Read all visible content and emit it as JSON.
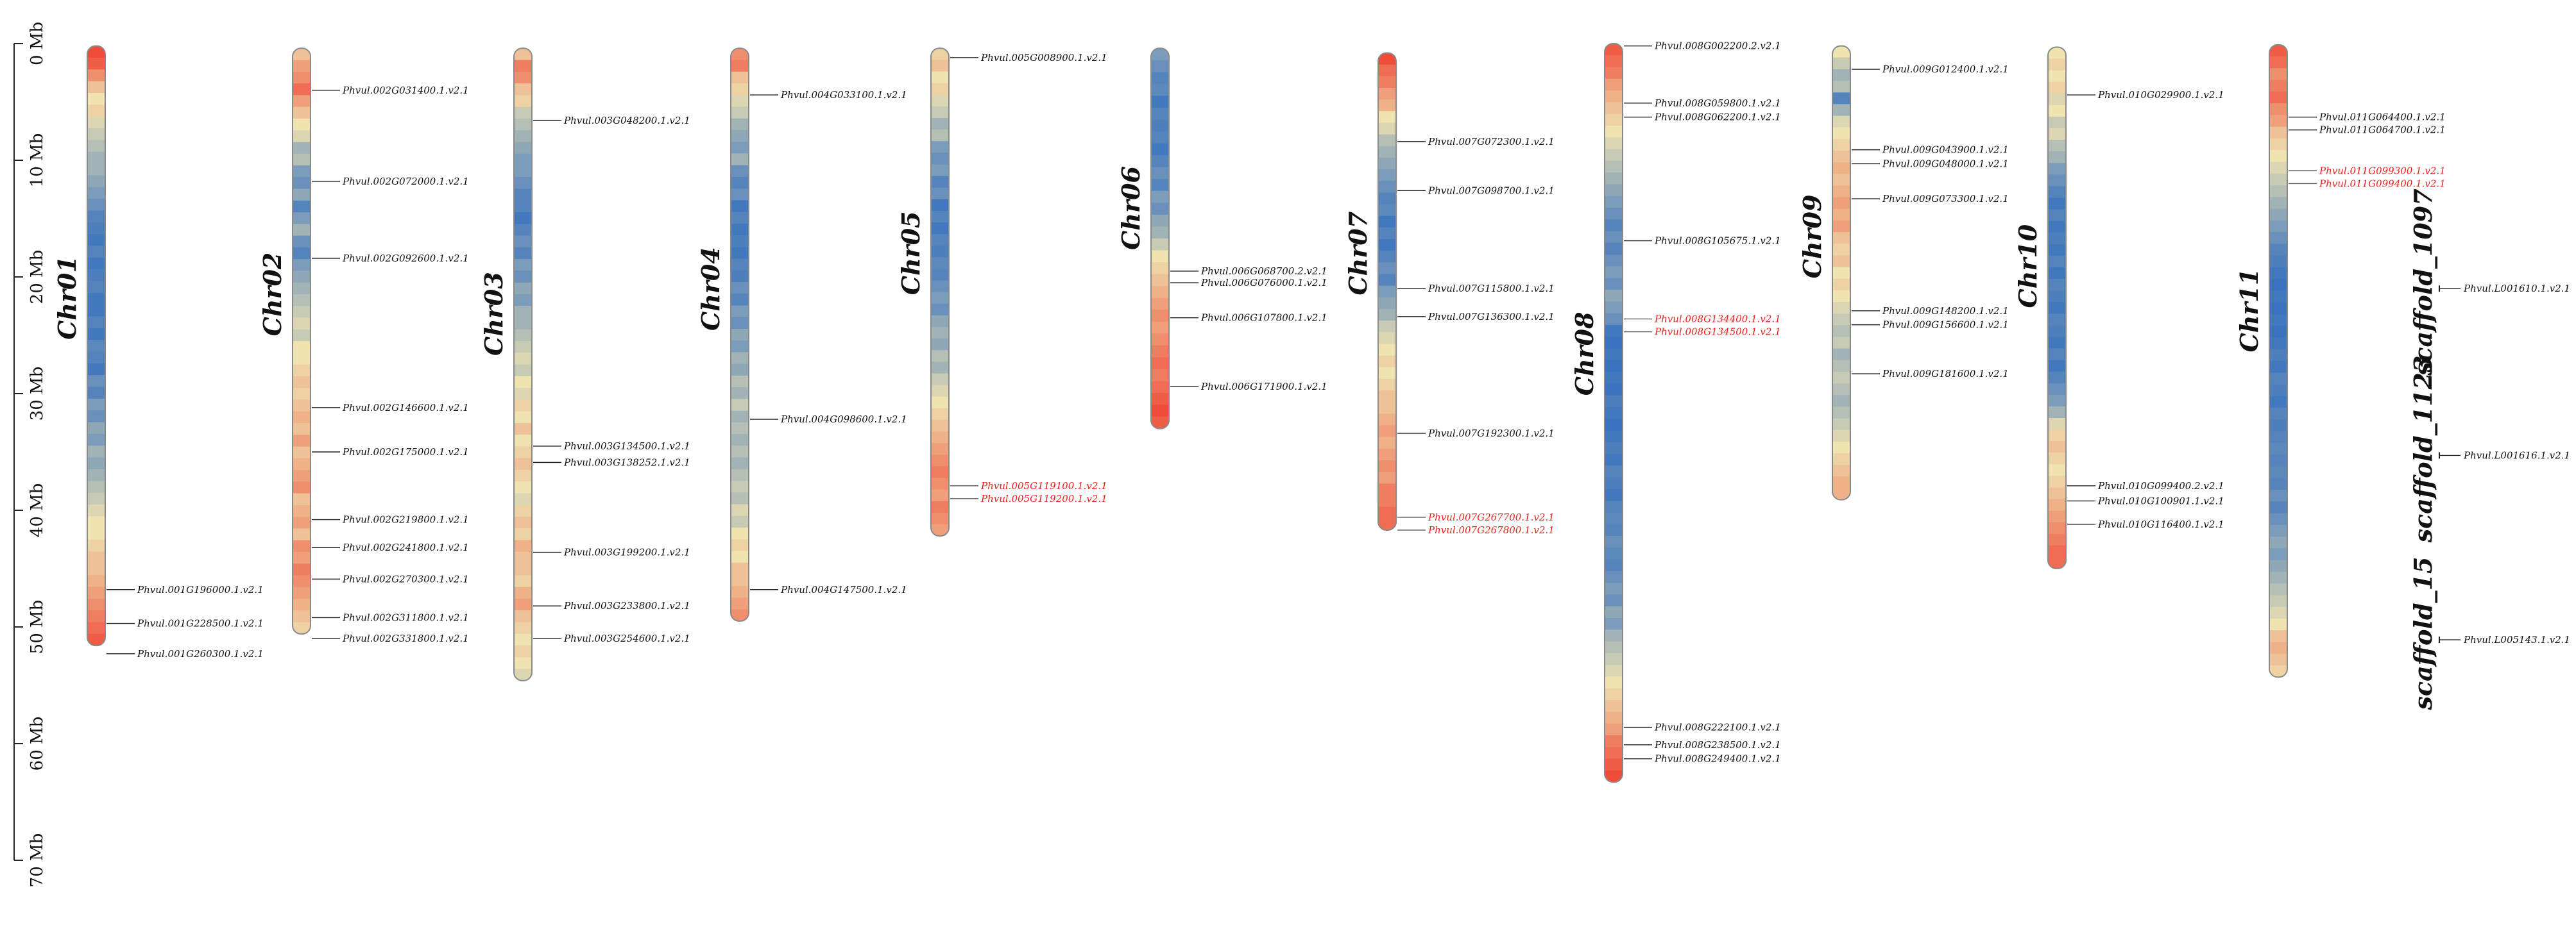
{
  "axis": {
    "unit": "Mb",
    "ticks": [
      {
        "value": 0,
        "label": "0 Mb"
      },
      {
        "value": 10,
        "label": "10 Mb"
      },
      {
        "value": 20,
        "label": "20 Mb"
      },
      {
        "value": 30,
        "label": "30 Mb"
      },
      {
        "value": 40,
        "label": "40 Mb"
      },
      {
        "value": 50,
        "label": "50 Mb"
      },
      {
        "value": 60,
        "label": "60 Mb"
      },
      {
        "value": 70,
        "label": "70 Mb"
      }
    ]
  },
  "colors": {
    "low_density": "#2e6cc0",
    "mid_density": "#efe3b0",
    "high_density": "#ef3b2c",
    "highlight_text": "#e8221c",
    "text": "#111111"
  },
  "chromosomes": [
    {
      "name": "Chr01",
      "start": 0.2,
      "length": 51.4,
      "density": [
        0.95,
        0.9,
        0.75,
        0.6,
        0.5,
        0.55,
        0.45,
        0.4,
        0.35,
        0.3,
        0.3,
        0.25,
        0.2,
        0.15,
        0.1,
        0.08,
        0.05,
        0.1,
        0.05,
        0.08,
        0.1,
        0.05,
        0.05,
        0.1,
        0.05,
        0.12,
        0.1,
        0.05,
        0.15,
        0.1,
        0.2,
        0.15,
        0.25,
        0.2,
        0.3,
        0.25,
        0.3,
        0.35,
        0.4,
        0.45,
        0.5,
        0.5,
        0.55,
        0.6,
        0.6,
        0.65,
        0.7,
        0.75,
        0.8,
        0.85,
        0.9
      ],
      "genes": [
        {
          "label": "Phvul.001G196000.1.v2.1",
          "pos": 46.8
        },
        {
          "label": "Phvul.001G228500.1.v2.1",
          "pos": 49.7
        },
        {
          "label": "Phvul.001G260300.1.v2.1",
          "pos": 52.3
        }
      ]
    },
    {
      "name": "Chr02",
      "start": 0.4,
      "length": 50.2,
      "density": [
        0.6,
        0.7,
        0.75,
        0.85,
        0.7,
        0.6,
        0.5,
        0.45,
        0.3,
        0.35,
        0.2,
        0.15,
        0.25,
        0.1,
        0.2,
        0.3,
        0.15,
        0.1,
        0.2,
        0.25,
        0.3,
        0.35,
        0.4,
        0.45,
        0.4,
        0.5,
        0.5,
        0.55,
        0.6,
        0.55,
        0.6,
        0.65,
        0.6,
        0.7,
        0.6,
        0.65,
        0.7,
        0.75,
        0.6,
        0.65,
        0.7,
        0.6,
        0.75,
        0.7,
        0.8,
        0.75,
        0.7,
        0.65,
        0.6,
        0.55
      ],
      "genes": [
        {
          "label": "Phvul.002G031400.1.v2.1",
          "pos": 4.0
        },
        {
          "label": "Phvul.002G072000.1.v2.1",
          "pos": 11.8
        },
        {
          "label": "Phvul.002G092600.1.v2.1",
          "pos": 18.4
        },
        {
          "label": "Phvul.002G146600.1.v2.1",
          "pos": 31.2
        },
        {
          "label": "Phvul.002G175000.1.v2.1",
          "pos": 35.0
        },
        {
          "label": "Phvul.002G219800.1.v2.1",
          "pos": 40.8
        },
        {
          "label": "Phvul.002G241800.1.v2.1",
          "pos": 43.2
        },
        {
          "label": "Phvul.002G270300.1.v2.1",
          "pos": 45.9
        },
        {
          "label": "Phvul.002G311800.1.v2.1",
          "pos": 49.2
        },
        {
          "label": "Phvul.002G331800.1.v2.1",
          "pos": 51.0
        }
      ]
    },
    {
      "name": "Chr03",
      "start": 0.4,
      "length": 54.2,
      "density": [
        0.6,
        0.8,
        0.75,
        0.6,
        0.55,
        0.4,
        0.35,
        0.3,
        0.25,
        0.2,
        0.2,
        0.15,
        0.1,
        0.1,
        0.05,
        0.1,
        0.15,
        0.1,
        0.2,
        0.15,
        0.25,
        0.2,
        0.3,
        0.3,
        0.35,
        0.4,
        0.45,
        0.4,
        0.5,
        0.45,
        0.55,
        0.5,
        0.6,
        0.5,
        0.55,
        0.6,
        0.55,
        0.5,
        0.45,
        0.55,
        0.6,
        0.55,
        0.65,
        0.6,
        0.6,
        0.55,
        0.65,
        0.7,
        0.6,
        0.55,
        0.5,
        0.55,
        0.5,
        0.45
      ],
      "genes": [
        {
          "label": "Phvul.003G048200.1.v2.1",
          "pos": 6.6
        },
        {
          "label": "Phvul.003G134500.1.v2.1",
          "pos": 34.5
        },
        {
          "label": "Phvul.003G138252.1.v2.1",
          "pos": 35.9
        },
        {
          "label": "Phvul.003G199200.1.v2.1",
          "pos": 43.6
        },
        {
          "label": "Phvul.003G233800.1.v2.1",
          "pos": 48.2
        },
        {
          "label": "Phvul.003G254600.1.v2.1",
          "pos": 51.0
        }
      ]
    },
    {
      "name": "Chr04",
      "start": 0.4,
      "length": 49.1,
      "density": [
        0.75,
        0.8,
        0.6,
        0.55,
        0.45,
        0.4,
        0.3,
        0.25,
        0.2,
        0.3,
        0.15,
        0.1,
        0.15,
        0.05,
        0.1,
        0.05,
        0.08,
        0.05,
        0.1,
        0.08,
        0.15,
        0.1,
        0.2,
        0.15,
        0.25,
        0.2,
        0.3,
        0.25,
        0.35,
        0.3,
        0.4,
        0.3,
        0.35,
        0.3,
        0.35,
        0.3,
        0.35,
        0.4,
        0.35,
        0.45,
        0.4,
        0.5,
        0.55,
        0.5,
        0.6,
        0.6,
        0.65,
        0.7,
        0.75
      ],
      "genes": [
        {
          "label": "Phvul.004G033100.1.v2.1",
          "pos": 4.4
        },
        {
          "label": "Phvul.004G098600.1.v2.1",
          "pos": 32.2
        },
        {
          "label": "Phvul.004G147500.1.v2.1",
          "pos": 46.8
        }
      ]
    },
    {
      "name": "Chr05",
      "start": 0.4,
      "length": 41.8,
      "density": [
        0.55,
        0.6,
        0.5,
        0.55,
        0.45,
        0.4,
        0.3,
        0.35,
        0.2,
        0.15,
        0.2,
        0.1,
        0.15,
        0.05,
        0.1,
        0.05,
        0.1,
        0.08,
        0.12,
        0.1,
        0.15,
        0.2,
        0.15,
        0.25,
        0.3,
        0.25,
        0.35,
        0.3,
        0.4,
        0.45,
        0.5,
        0.55,
        0.6,
        0.65,
        0.7,
        0.75,
        0.8,
        0.75,
        0.7,
        0.8,
        0.75,
        0.7
      ],
      "genes": [
        {
          "label": "Phvul.005G008900.1.v2.1",
          "pos": 1.2
        },
        {
          "label": "Phvul.005G119100.1.v2.1",
          "pos": 37.9,
          "highlight": true
        },
        {
          "label": "Phvul.005G119200.1.v2.1",
          "pos": 39.0,
          "highlight": true
        }
      ]
    },
    {
      "name": "Chr06",
      "start": 0.4,
      "length": 32.6,
      "density": [
        0.2,
        0.15,
        0.1,
        0.12,
        0.05,
        0.1,
        0.08,
        0.1,
        0.05,
        0.1,
        0.15,
        0.1,
        0.2,
        0.15,
        0.25,
        0.3,
        0.4,
        0.5,
        0.55,
        0.6,
        0.65,
        0.7,
        0.75,
        0.7,
        0.75,
        0.8,
        0.85,
        0.8,
        0.85,
        0.9,
        0.95,
        0.9
      ],
      "genes": [
        {
          "label": "Phvul.006G068700.2.v2.1",
          "pos": 19.5
        },
        {
          "label": "Phvul.006G076000.1.v2.1",
          "pos": 20.5
        },
        {
          "label": "Phvul.006G107800.1.v2.1",
          "pos": 23.5
        },
        {
          "label": "Phvul.006G171900.1.v2.1",
          "pos": 29.4
        }
      ]
    },
    {
      "name": "Chr07",
      "start": 0.8,
      "length": 40.9,
      "density": [
        0.95,
        0.85,
        0.8,
        0.7,
        0.65,
        0.5,
        0.45,
        0.35,
        0.3,
        0.25,
        0.2,
        0.15,
        0.1,
        0.12,
        0.05,
        0.1,
        0.05,
        0.1,
        0.15,
        0.1,
        0.2,
        0.25,
        0.3,
        0.4,
        0.45,
        0.5,
        0.55,
        0.5,
        0.55,
        0.6,
        0.6,
        0.65,
        0.7,
        0.65,
        0.7,
        0.75,
        0.7,
        0.8,
        0.8,
        0.85,
        0.85
      ],
      "genes": [
        {
          "label": "Phvul.007G072300.1.v2.1",
          "pos": 8.4
        },
        {
          "label": "Phvul.007G098700.1.v2.1",
          "pos": 12.6
        },
        {
          "label": "Phvul.007G115800.1.v2.1",
          "pos": 21.0
        },
        {
          "label": "Phvul.007G136300.1.v2.1",
          "pos": 23.4
        },
        {
          "label": "Phvul.007G192300.1.v2.1",
          "pos": 33.4
        },
        {
          "label": "Phvul.007G267700.1.v2.1",
          "pos": 40.6,
          "highlight": true
        },
        {
          "label": "Phvul.007G267800.1.v2.1",
          "pos": 41.7,
          "highlight": true
        }
      ]
    },
    {
      "name": "Chr08",
      "start": 0.0,
      "length": 63.3,
      "density": [
        0.9,
        0.85,
        0.8,
        0.7,
        0.65,
        0.6,
        0.55,
        0.5,
        0.45,
        0.4,
        0.35,
        0.3,
        0.25,
        0.2,
        0.15,
        0.1,
        0.15,
        0.1,
        0.15,
        0.2,
        0.15,
        0.25,
        0.2,
        0.15,
        0.05,
        0.03,
        0.05,
        0.03,
        0.05,
        0.03,
        0.08,
        0.05,
        0.03,
        0.05,
        0.08,
        0.05,
        0.1,
        0.08,
        0.05,
        0.1,
        0.12,
        0.1,
        0.15,
        0.12,
        0.1,
        0.15,
        0.2,
        0.15,
        0.25,
        0.2,
        0.3,
        0.35,
        0.4,
        0.45,
        0.5,
        0.55,
        0.6,
        0.65,
        0.7,
        0.8,
        0.85,
        0.9,
        0.95
      ],
      "genes": [
        {
          "label": "Phvul.008G002200.2.v2.1",
          "pos": 0.2
        },
        {
          "label": "Phvul.008G059800.1.v2.1",
          "pos": 5.1
        },
        {
          "label": "Phvul.008G062200.1.v2.1",
          "pos": 6.3
        },
        {
          "label": "Phvul.008G105675.1.v2.1",
          "pos": 16.9
        },
        {
          "label": "Phvul.008G134400.1.v2.1",
          "pos": 23.6,
          "highlight": true
        },
        {
          "label": "Phvul.008G134500.1.v2.1",
          "pos": 24.7,
          "highlight": true
        },
        {
          "label": "Phvul.008G222100.1.v2.1",
          "pos": 58.6
        },
        {
          "label": "Phvul.008G238500.1.v2.1",
          "pos": 60.1
        },
        {
          "label": "Phvul.008G249400.1.v2.1",
          "pos": 61.3
        }
      ]
    },
    {
      "name": "Chr09",
      "start": 0.2,
      "length": 38.9,
      "density": [
        0.5,
        0.4,
        0.3,
        0.35,
        0.1,
        0.3,
        0.45,
        0.5,
        0.55,
        0.6,
        0.65,
        0.6,
        0.65,
        0.7,
        0.65,
        0.7,
        0.6,
        0.55,
        0.6,
        0.5,
        0.55,
        0.5,
        0.45,
        0.4,
        0.35,
        0.4,
        0.3,
        0.35,
        0.4,
        0.35,
        0.3,
        0.35,
        0.4,
        0.45,
        0.5,
        0.55,
        0.6,
        0.65,
        0.65
      ],
      "genes": [
        {
          "label": "Phvul.009G012400.1.v2.1",
          "pos": 2.2
        },
        {
          "label": "Phvul.009G043900.1.v2.1",
          "pos": 9.1
        },
        {
          "label": "Phvul.009G048000.1.v2.1",
          "pos": 10.3
        },
        {
          "label": "Phvul.009G073300.1.v2.1",
          "pos": 13.3
        },
        {
          "label": "Phvul.009G148200.1.v2.1",
          "pos": 22.9
        },
        {
          "label": "Phvul.009G156600.1.v2.1",
          "pos": 24.1
        },
        {
          "label": "Phvul.009G181600.1.v2.1",
          "pos": 28.3
        }
      ]
    },
    {
      "name": "Chr10",
      "start": 0.3,
      "length": 44.7,
      "density": [
        0.5,
        0.55,
        0.5,
        0.55,
        0.45,
        0.5,
        0.4,
        0.45,
        0.35,
        0.3,
        0.2,
        0.15,
        0.1,
        0.05,
        0.1,
        0.05,
        0.08,
        0.05,
        0.1,
        0.05,
        0.1,
        0.08,
        0.05,
        0.1,
        0.08,
        0.05,
        0.1,
        0.05,
        0.1,
        0.15,
        0.2,
        0.3,
        0.45,
        0.55,
        0.6,
        0.55,
        0.5,
        0.55,
        0.6,
        0.65,
        0.7,
        0.75,
        0.8,
        0.85,
        0.85
      ],
      "genes": [
        {
          "label": "Phvul.010G029900.1.v2.1",
          "pos": 4.4
        },
        {
          "label": "Phvul.010G099400.2.v2.1",
          "pos": 37.9
        },
        {
          "label": "Phvul.010G100901.1.v2.1",
          "pos": 39.2
        },
        {
          "label": "Phvul.010G116400.1.v2.1",
          "pos": 41.2
        }
      ]
    },
    {
      "name": "Chr11",
      "start": 0.1,
      "length": 54.2,
      "density": [
        0.9,
        0.85,
        0.75,
        0.8,
        0.85,
        0.75,
        0.7,
        0.6,
        0.55,
        0.5,
        0.45,
        0.4,
        0.35,
        0.3,
        0.25,
        0.2,
        0.15,
        0.1,
        0.08,
        0.05,
        0.03,
        0.05,
        0.03,
        0.05,
        0.03,
        0.05,
        0.08,
        0.05,
        0.1,
        0.08,
        0.05,
        0.1,
        0.08,
        0.1,
        0.12,
        0.1,
        0.12,
        0.1,
        0.15,
        0.1,
        0.15,
        0.2,
        0.25,
        0.2,
        0.25,
        0.3,
        0.35,
        0.4,
        0.45,
        0.5,
        0.6,
        0.65,
        0.6,
        0.55
      ],
      "genes": [
        {
          "label": "Phvul.011G064400.1.v2.1",
          "pos": 6.3
        },
        {
          "label": "Phvul.011G064700.1.v2.1",
          "pos": 7.4
        },
        {
          "label": "Phvul.011G099300.1.v2.1",
          "pos": 10.9,
          "highlight": true
        },
        {
          "label": "Phvul.011G099400.1.v2.1",
          "pos": 12.0,
          "highlight": true
        }
      ]
    }
  ],
  "scaffolds": [
    {
      "name": "scaffold_1097",
      "pos": 21.0,
      "gene": "Phvul.L001610.1.v2.1"
    },
    {
      "name": "scaffold_1123",
      "pos": 35.3,
      "gene": "Phvul.L001616.1.v2.1"
    },
    {
      "name": "scaffold_15",
      "pos": 51.1,
      "gene": "Phvul.L005143.1.v2.1"
    }
  ]
}
